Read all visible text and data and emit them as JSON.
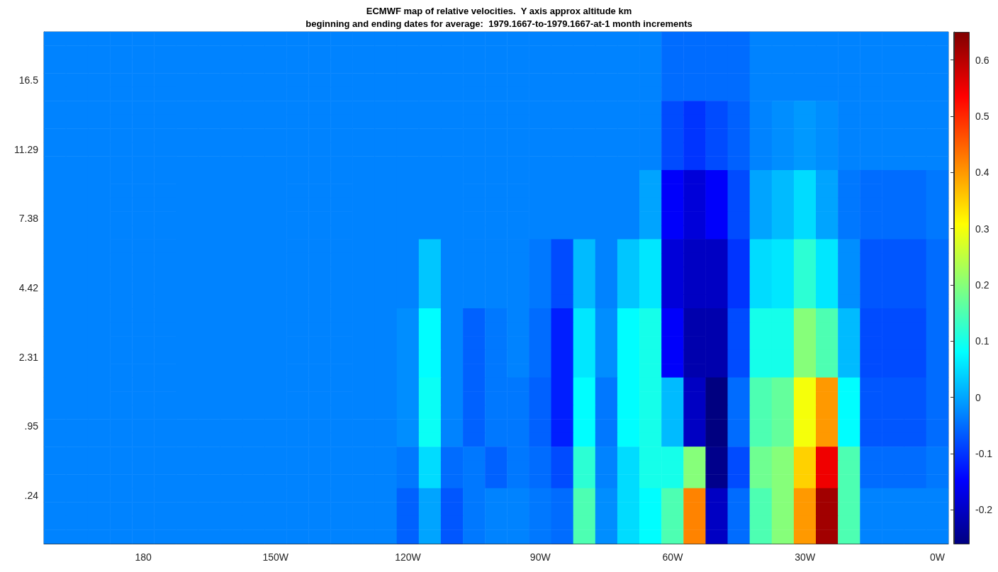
{
  "chart_data": {
    "type": "heatmap",
    "title": "ECMWF map of relative velocities.  Y axis approx altitude km",
    "subtitle": "beginning and ending dates for average:  1979.1667-to-1979.1667-at-1 month increments",
    "categories": [
      null,
      null,
      null,
      null,
      "180",
      null,
      null,
      null,
      null,
      null,
      "150W",
      null,
      null,
      null,
      null,
      null,
      "120W",
      null,
      null,
      null,
      null,
      null,
      "90W",
      null,
      null,
      null,
      null,
      null,
      "60W",
      null,
      null,
      null,
      null,
      null,
      "30W",
      null,
      null,
      null,
      null,
      null,
      "0W"
    ],
    "y_categories": [
      null,
      null,
      null,
      "16.5",
      null,
      null,
      null,
      null,
      "11.29",
      null,
      null,
      null,
      null,
      "7.38",
      null,
      null,
      null,
      null,
      "4.42",
      null,
      null,
      null,
      null,
      "2.31",
      null,
      null,
      null,
      null,
      ".95",
      null,
      null,
      null,
      null,
      ".24",
      null,
      null,
      null
    ],
    "clim": [
      -0.26,
      0.65
    ],
    "cticks": [
      -0.2,
      -0.1,
      0,
      0.1,
      0.2,
      0.3,
      0.4,
      0.5,
      0.6
    ],
    "cells": [
      [
        -0.03,
        -0.03,
        -0.03,
        -0.03,
        -0.03,
        -0.03,
        -0.03,
        -0.03,
        -0.03,
        -0.03,
        -0.03,
        -0.03,
        -0.03,
        -0.03,
        -0.03,
        -0.03,
        -0.03,
        -0.03,
        -0.03,
        -0.03,
        -0.03,
        -0.03,
        -0.03,
        -0.03,
        -0.03,
        -0.03,
        -0.03,
        -0.03,
        -0.05,
        -0.05,
        -0.05,
        -0.05,
        -0.03,
        -0.03,
        -0.03,
        -0.03,
        -0.03,
        -0.03,
        -0.03,
        -0.03,
        -0.03
      ],
      [
        -0.03,
        -0.03,
        -0.03,
        -0.03,
        -0.03,
        -0.03,
        -0.03,
        -0.03,
        -0.03,
        -0.03,
        -0.03,
        -0.03,
        -0.03,
        -0.03,
        -0.03,
        -0.03,
        -0.03,
        -0.03,
        -0.03,
        -0.03,
        -0.03,
        -0.03,
        -0.03,
        -0.03,
        -0.03,
        -0.03,
        -0.03,
        -0.03,
        -0.05,
        -0.05,
        -0.05,
        -0.05,
        -0.03,
        -0.03,
        -0.03,
        -0.03,
        -0.03,
        -0.03,
        -0.03,
        -0.03,
        -0.03
      ],
      [
        -0.03,
        -0.03,
        -0.03,
        -0.03,
        -0.03,
        -0.03,
        -0.03,
        -0.03,
        -0.03,
        -0.03,
        -0.03,
        -0.03,
        -0.03,
        -0.03,
        -0.03,
        -0.03,
        -0.03,
        -0.03,
        -0.03,
        -0.03,
        -0.03,
        -0.03,
        -0.03,
        -0.03,
        -0.03,
        -0.03,
        -0.03,
        -0.03,
        -0.05,
        -0.05,
        -0.05,
        -0.05,
        -0.03,
        -0.03,
        -0.03,
        -0.03,
        -0.03,
        -0.03,
        -0.03,
        -0.03,
        -0.03
      ],
      [
        -0.03,
        -0.03,
        -0.03,
        -0.03,
        -0.03,
        -0.03,
        -0.03,
        -0.03,
        -0.03,
        -0.03,
        -0.03,
        -0.03,
        -0.03,
        -0.03,
        -0.03,
        -0.03,
        -0.03,
        -0.03,
        -0.03,
        -0.03,
        -0.03,
        -0.03,
        -0.03,
        -0.03,
        -0.03,
        -0.03,
        -0.03,
        -0.03,
        -0.05,
        -0.05,
        -0.05,
        -0.05,
        -0.03,
        -0.03,
        -0.03,
        -0.03,
        -0.03,
        -0.03,
        -0.03,
        -0.03,
        -0.03
      ],
      [
        -0.03,
        -0.03,
        -0.03,
        -0.03,
        -0.03,
        -0.03,
        -0.03,
        -0.03,
        -0.03,
        -0.03,
        -0.03,
        -0.03,
        -0.03,
        -0.03,
        -0.03,
        -0.03,
        -0.03,
        -0.03,
        -0.03,
        -0.03,
        -0.03,
        -0.03,
        -0.03,
        -0.03,
        -0.03,
        -0.03,
        -0.03,
        -0.03,
        -0.05,
        -0.05,
        -0.05,
        -0.05,
        -0.03,
        -0.03,
        -0.03,
        -0.03,
        -0.03,
        -0.03,
        -0.03,
        -0.03,
        -0.03
      ],
      [
        -0.03,
        -0.03,
        -0.03,
        -0.03,
        -0.03,
        -0.03,
        -0.03,
        -0.03,
        -0.03,
        -0.03,
        -0.03,
        -0.03,
        -0.03,
        -0.03,
        -0.03,
        -0.03,
        -0.03,
        -0.03,
        -0.03,
        -0.03,
        -0.03,
        -0.03,
        -0.03,
        -0.03,
        -0.03,
        -0.03,
        -0.03,
        -0.03,
        -0.08,
        -0.1,
        -0.08,
        -0.06,
        -0.03,
        -0.02,
        -0.01,
        -0.02,
        -0.03,
        -0.03,
        -0.03,
        -0.03,
        -0.03
      ],
      [
        -0.03,
        -0.03,
        -0.03,
        -0.03,
        -0.03,
        -0.03,
        -0.03,
        -0.03,
        -0.03,
        -0.03,
        -0.03,
        -0.03,
        -0.03,
        -0.03,
        -0.03,
        -0.03,
        -0.03,
        -0.03,
        -0.03,
        -0.03,
        -0.03,
        -0.03,
        -0.03,
        -0.03,
        -0.03,
        -0.03,
        -0.03,
        -0.03,
        -0.08,
        -0.1,
        -0.08,
        -0.06,
        -0.03,
        -0.02,
        -0.01,
        -0.02,
        -0.03,
        -0.03,
        -0.03,
        -0.03,
        -0.03
      ],
      [
        -0.03,
        -0.03,
        -0.03,
        -0.03,
        -0.03,
        -0.03,
        -0.03,
        -0.03,
        -0.03,
        -0.03,
        -0.03,
        -0.03,
        -0.03,
        -0.03,
        -0.03,
        -0.03,
        -0.03,
        -0.03,
        -0.03,
        -0.03,
        -0.03,
        -0.03,
        -0.03,
        -0.03,
        -0.03,
        -0.03,
        -0.03,
        -0.03,
        -0.08,
        -0.1,
        -0.08,
        -0.06,
        -0.03,
        -0.02,
        -0.01,
        -0.02,
        -0.03,
        -0.03,
        -0.03,
        -0.03,
        -0.03
      ],
      [
        -0.03,
        -0.03,
        -0.03,
        -0.03,
        -0.03,
        -0.03,
        -0.03,
        -0.03,
        -0.03,
        -0.03,
        -0.03,
        -0.03,
        -0.03,
        -0.03,
        -0.03,
        -0.03,
        -0.03,
        -0.03,
        -0.03,
        -0.03,
        -0.03,
        -0.03,
        -0.03,
        -0.03,
        -0.03,
        -0.03,
        -0.03,
        -0.03,
        -0.08,
        -0.1,
        -0.08,
        -0.06,
        -0.03,
        -0.02,
        -0.01,
        -0.02,
        -0.03,
        -0.03,
        -0.03,
        -0.03,
        -0.03
      ],
      [
        -0.03,
        -0.03,
        -0.03,
        -0.03,
        -0.03,
        -0.03,
        -0.03,
        -0.03,
        -0.03,
        -0.03,
        -0.03,
        -0.03,
        -0.03,
        -0.03,
        -0.03,
        -0.03,
        -0.03,
        -0.03,
        -0.03,
        -0.03,
        -0.03,
        -0.03,
        -0.03,
        -0.03,
        -0.03,
        -0.03,
        -0.03,
        -0.03,
        -0.08,
        -0.1,
        -0.08,
        -0.06,
        -0.03,
        -0.02,
        -0.01,
        -0.02,
        -0.03,
        -0.03,
        -0.03,
        -0.03,
        -0.03
      ],
      [
        -0.03,
        -0.03,
        -0.03,
        -0.03,
        -0.03,
        -0.03,
        -0.03,
        -0.03,
        -0.03,
        -0.03,
        -0.03,
        -0.03,
        -0.03,
        -0.03,
        -0.03,
        -0.03,
        -0.03,
        -0.03,
        -0.03,
        -0.03,
        -0.03,
        -0.03,
        -0.03,
        -0.03,
        -0.03,
        -0.03,
        -0.03,
        0,
        -0.15,
        -0.18,
        -0.15,
        -0.08,
        0,
        0.02,
        0.05,
        0,
        -0.04,
        -0.05,
        -0.05,
        -0.05,
        -0.04
      ],
      [
        -0.03,
        -0.03,
        -0.03,
        -0.03,
        -0.03,
        -0.03,
        -0.03,
        -0.03,
        -0.03,
        -0.03,
        -0.03,
        -0.03,
        -0.03,
        -0.03,
        -0.03,
        -0.03,
        -0.03,
        -0.03,
        -0.03,
        -0.03,
        -0.03,
        -0.03,
        -0.03,
        -0.03,
        -0.03,
        -0.03,
        -0.03,
        0,
        -0.15,
        -0.18,
        -0.15,
        -0.08,
        0,
        0.02,
        0.05,
        0,
        -0.04,
        -0.05,
        -0.05,
        -0.05,
        -0.04
      ],
      [
        -0.03,
        -0.03,
        -0.03,
        -0.03,
        -0.03,
        -0.03,
        -0.03,
        -0.03,
        -0.03,
        -0.03,
        -0.03,
        -0.03,
        -0.03,
        -0.03,
        -0.03,
        -0.03,
        -0.03,
        -0.03,
        -0.03,
        -0.03,
        -0.03,
        -0.03,
        -0.03,
        -0.03,
        -0.03,
        -0.03,
        -0.03,
        0,
        -0.15,
        -0.18,
        -0.15,
        -0.08,
        0,
        0.02,
        0.05,
        0,
        -0.04,
        -0.05,
        -0.05,
        -0.05,
        -0.04
      ],
      [
        -0.03,
        -0.03,
        -0.03,
        -0.03,
        -0.03,
        -0.03,
        -0.03,
        -0.03,
        -0.03,
        -0.03,
        -0.03,
        -0.03,
        -0.03,
        -0.03,
        -0.03,
        -0.03,
        -0.03,
        -0.03,
        -0.03,
        -0.03,
        -0.03,
        -0.03,
        -0.03,
        -0.03,
        -0.03,
        -0.03,
        -0.03,
        0,
        -0.15,
        -0.18,
        -0.15,
        -0.08,
        0,
        0.02,
        0.05,
        0,
        -0.04,
        -0.05,
        -0.05,
        -0.05,
        -0.04
      ],
      [
        -0.03,
        -0.03,
        -0.03,
        -0.03,
        -0.03,
        -0.03,
        -0.03,
        -0.03,
        -0.03,
        -0.03,
        -0.03,
        -0.03,
        -0.03,
        -0.03,
        -0.03,
        -0.03,
        -0.03,
        -0.03,
        -0.03,
        -0.03,
        -0.03,
        -0.03,
        -0.03,
        -0.03,
        -0.03,
        -0.03,
        -0.03,
        0,
        -0.15,
        -0.18,
        -0.15,
        -0.08,
        0,
        0.02,
        0.05,
        0,
        -0.04,
        -0.05,
        -0.05,
        -0.05,
        -0.04
      ],
      [
        -0.03,
        -0.03,
        -0.03,
        -0.03,
        -0.03,
        -0.03,
        -0.03,
        -0.03,
        -0.03,
        -0.03,
        -0.03,
        -0.03,
        -0.03,
        -0.03,
        -0.03,
        -0.03,
        -0.03,
        0.03,
        -0.03,
        -0.03,
        -0.03,
        -0.03,
        -0.04,
        -0.08,
        0.02,
        -0.03,
        0.03,
        0.06,
        -0.18,
        -0.2,
        -0.2,
        -0.1,
        0.05,
        0.06,
        0.12,
        0.06,
        -0.02,
        -0.07,
        -0.07,
        -0.07,
        -0.05
      ],
      [
        -0.03,
        -0.03,
        -0.03,
        -0.03,
        -0.03,
        -0.03,
        -0.03,
        -0.03,
        -0.03,
        -0.03,
        -0.03,
        -0.03,
        -0.03,
        -0.03,
        -0.03,
        -0.03,
        -0.03,
        0.03,
        -0.03,
        -0.03,
        -0.03,
        -0.03,
        -0.04,
        -0.08,
        0.02,
        -0.03,
        0.03,
        0.06,
        -0.18,
        -0.2,
        -0.2,
        -0.1,
        0.05,
        0.06,
        0.12,
        0.06,
        -0.02,
        -0.07,
        -0.07,
        -0.07,
        -0.05
      ],
      [
        -0.03,
        -0.03,
        -0.03,
        -0.03,
        -0.03,
        -0.03,
        -0.03,
        -0.03,
        -0.03,
        -0.03,
        -0.03,
        -0.03,
        -0.03,
        -0.03,
        -0.03,
        -0.03,
        -0.03,
        0.03,
        -0.03,
        -0.03,
        -0.03,
        -0.03,
        -0.04,
        -0.08,
        0.02,
        -0.03,
        0.03,
        0.06,
        -0.18,
        -0.2,
        -0.2,
        -0.1,
        0.05,
        0.06,
        0.12,
        0.06,
        -0.02,
        -0.07,
        -0.07,
        -0.07,
        -0.05
      ],
      [
        -0.03,
        -0.03,
        -0.03,
        -0.03,
        -0.03,
        -0.03,
        -0.03,
        -0.03,
        -0.03,
        -0.03,
        -0.03,
        -0.03,
        -0.03,
        -0.03,
        -0.03,
        -0.03,
        -0.03,
        0.03,
        -0.03,
        -0.03,
        -0.03,
        -0.03,
        -0.04,
        -0.08,
        0.02,
        -0.03,
        0.03,
        0.06,
        -0.18,
        -0.2,
        -0.2,
        -0.1,
        0.05,
        0.06,
        0.12,
        0.06,
        -0.02,
        -0.07,
        -0.07,
        -0.07,
        -0.05
      ],
      [
        -0.03,
        -0.03,
        -0.03,
        -0.03,
        -0.03,
        -0.03,
        -0.03,
        -0.03,
        -0.03,
        -0.03,
        -0.03,
        -0.03,
        -0.03,
        -0.03,
        -0.03,
        -0.03,
        -0.03,
        0.03,
        -0.03,
        -0.03,
        -0.03,
        -0.03,
        -0.04,
        -0.08,
        0.02,
        -0.03,
        0.03,
        0.06,
        -0.18,
        -0.2,
        -0.2,
        -0.1,
        0.05,
        0.06,
        0.12,
        0.06,
        -0.02,
        -0.07,
        -0.07,
        -0.07,
        -0.05
      ],
      [
        -0.03,
        -0.03,
        -0.03,
        -0.03,
        -0.03,
        -0.03,
        -0.03,
        -0.03,
        -0.03,
        -0.03,
        -0.03,
        -0.03,
        -0.03,
        -0.03,
        -0.03,
        -0.03,
        -0.02,
        0.08,
        -0.03,
        -0.06,
        -0.04,
        -0.03,
        -0.05,
        -0.12,
        0.06,
        -0.02,
        0.08,
        0.1,
        -0.15,
        -0.22,
        -0.22,
        -0.08,
        0.1,
        0.1,
        0.2,
        0.15,
        0.02,
        -0.08,
        -0.08,
        -0.08,
        -0.05
      ],
      [
        -0.03,
        -0.03,
        -0.03,
        -0.03,
        -0.03,
        -0.03,
        -0.03,
        -0.03,
        -0.03,
        -0.03,
        -0.03,
        -0.03,
        -0.03,
        -0.03,
        -0.03,
        -0.03,
        -0.02,
        0.08,
        -0.03,
        -0.06,
        -0.04,
        -0.03,
        -0.05,
        -0.12,
        0.06,
        -0.02,
        0.08,
        0.1,
        -0.15,
        -0.22,
        -0.22,
        -0.08,
        0.1,
        0.1,
        0.2,
        0.15,
        0.02,
        -0.08,
        -0.08,
        -0.08,
        -0.05
      ],
      [
        -0.03,
        -0.03,
        -0.03,
        -0.03,
        -0.03,
        -0.03,
        -0.03,
        -0.03,
        -0.03,
        -0.03,
        -0.03,
        -0.03,
        -0.03,
        -0.03,
        -0.03,
        -0.03,
        -0.02,
        0.08,
        -0.03,
        -0.06,
        -0.04,
        -0.03,
        -0.05,
        -0.12,
        0.06,
        -0.02,
        0.08,
        0.1,
        -0.15,
        -0.22,
        -0.22,
        -0.08,
        0.1,
        0.1,
        0.2,
        0.15,
        0.02,
        -0.08,
        -0.08,
        -0.08,
        -0.05
      ],
      [
        -0.03,
        -0.03,
        -0.03,
        -0.03,
        -0.03,
        -0.03,
        -0.03,
        -0.03,
        -0.03,
        -0.03,
        -0.03,
        -0.03,
        -0.03,
        -0.03,
        -0.03,
        -0.03,
        -0.02,
        0.08,
        -0.03,
        -0.06,
        -0.04,
        -0.03,
        -0.05,
        -0.12,
        0.06,
        -0.02,
        0.08,
        0.1,
        -0.15,
        -0.22,
        -0.22,
        -0.08,
        0.1,
        0.1,
        0.2,
        0.15,
        0.02,
        -0.08,
        -0.08,
        -0.08,
        -0.05
      ],
      [
        -0.03,
        -0.03,
        -0.03,
        -0.03,
        -0.03,
        -0.03,
        -0.03,
        -0.03,
        -0.03,
        -0.03,
        -0.03,
        -0.03,
        -0.03,
        -0.03,
        -0.03,
        -0.03,
        -0.02,
        0.08,
        -0.03,
        -0.06,
        -0.04,
        -0.03,
        -0.05,
        -0.12,
        0.06,
        -0.02,
        0.08,
        0.1,
        -0.15,
        -0.22,
        -0.22,
        -0.08,
        0.1,
        0.1,
        0.2,
        0.15,
        0.02,
        -0.08,
        -0.08,
        -0.08,
        -0.05
      ],
      [
        -0.03,
        -0.03,
        -0.03,
        -0.03,
        -0.03,
        -0.03,
        -0.03,
        -0.03,
        -0.03,
        -0.03,
        -0.03,
        -0.03,
        -0.03,
        -0.03,
        -0.03,
        -0.03,
        -0.02,
        0.09,
        -0.03,
        -0.06,
        -0.04,
        -0.04,
        -0.06,
        -0.12,
        0.08,
        -0.04,
        0.08,
        0.1,
        0.02,
        -0.2,
        -0.26,
        -0.05,
        0.15,
        0.17,
        0.3,
        0.4,
        0.08,
        -0.07,
        -0.07,
        -0.07,
        -0.05
      ],
      [
        -0.03,
        -0.03,
        -0.03,
        -0.03,
        -0.03,
        -0.03,
        -0.03,
        -0.03,
        -0.03,
        -0.03,
        -0.03,
        -0.03,
        -0.03,
        -0.03,
        -0.03,
        -0.03,
        -0.02,
        0.09,
        -0.03,
        -0.06,
        -0.04,
        -0.04,
        -0.06,
        -0.12,
        0.08,
        -0.04,
        0.08,
        0.1,
        0.02,
        -0.2,
        -0.26,
        -0.05,
        0.15,
        0.17,
        0.3,
        0.4,
        0.08,
        -0.07,
        -0.07,
        -0.07,
        -0.05
      ],
      [
        -0.03,
        -0.03,
        -0.03,
        -0.03,
        -0.03,
        -0.03,
        -0.03,
        -0.03,
        -0.03,
        -0.03,
        -0.03,
        -0.03,
        -0.03,
        -0.03,
        -0.03,
        -0.03,
        -0.02,
        0.09,
        -0.03,
        -0.06,
        -0.04,
        -0.04,
        -0.06,
        -0.12,
        0.08,
        -0.04,
        0.08,
        0.1,
        0.02,
        -0.2,
        -0.26,
        -0.05,
        0.15,
        0.17,
        0.3,
        0.4,
        0.08,
        -0.07,
        -0.07,
        -0.07,
        -0.05
      ],
      [
        -0.03,
        -0.03,
        -0.03,
        -0.03,
        -0.03,
        -0.03,
        -0.03,
        -0.03,
        -0.03,
        -0.03,
        -0.03,
        -0.03,
        -0.03,
        -0.03,
        -0.03,
        -0.03,
        -0.02,
        0.09,
        -0.03,
        -0.06,
        -0.04,
        -0.04,
        -0.06,
        -0.12,
        0.08,
        -0.04,
        0.08,
        0.1,
        0.02,
        -0.2,
        -0.26,
        -0.05,
        0.15,
        0.17,
        0.3,
        0.4,
        0.08,
        -0.07,
        -0.07,
        -0.07,
        -0.05
      ],
      [
        -0.03,
        -0.03,
        -0.03,
        -0.03,
        -0.03,
        -0.03,
        -0.03,
        -0.03,
        -0.03,
        -0.03,
        -0.03,
        -0.03,
        -0.03,
        -0.03,
        -0.03,
        -0.03,
        -0.02,
        0.09,
        -0.03,
        -0.06,
        -0.04,
        -0.04,
        -0.06,
        -0.12,
        0.08,
        -0.04,
        0.08,
        0.1,
        0.02,
        -0.2,
        -0.26,
        -0.05,
        0.15,
        0.17,
        0.3,
        0.4,
        0.08,
        -0.07,
        -0.07,
        -0.07,
        -0.05
      ],
      [
        -0.03,
        -0.03,
        -0.03,
        -0.03,
        -0.03,
        -0.03,
        -0.03,
        -0.03,
        -0.03,
        -0.03,
        -0.03,
        -0.03,
        -0.03,
        -0.03,
        -0.03,
        -0.03,
        -0.04,
        0.05,
        -0.05,
        -0.04,
        -0.06,
        -0.04,
        -0.05,
        -0.08,
        0.12,
        -0.03,
        0.05,
        0.1,
        0.1,
        0.2,
        -0.25,
        -0.08,
        0.18,
        0.2,
        0.35,
        0.55,
        0.15,
        -0.05,
        -0.05,
        -0.05,
        -0.04
      ],
      [
        -0.03,
        -0.03,
        -0.03,
        -0.03,
        -0.03,
        -0.03,
        -0.03,
        -0.03,
        -0.03,
        -0.03,
        -0.03,
        -0.03,
        -0.03,
        -0.03,
        -0.03,
        -0.03,
        -0.04,
        0.05,
        -0.05,
        -0.04,
        -0.06,
        -0.04,
        -0.05,
        -0.08,
        0.12,
        -0.03,
        0.05,
        0.1,
        0.1,
        0.2,
        -0.25,
        -0.08,
        0.18,
        0.2,
        0.35,
        0.55,
        0.15,
        -0.05,
        -0.05,
        -0.05,
        -0.04
      ],
      [
        -0.03,
        -0.03,
        -0.03,
        -0.03,
        -0.03,
        -0.03,
        -0.03,
        -0.03,
        -0.03,
        -0.03,
        -0.03,
        -0.03,
        -0.03,
        -0.03,
        -0.03,
        -0.03,
        -0.04,
        0.05,
        -0.05,
        -0.04,
        -0.06,
        -0.04,
        -0.05,
        -0.08,
        0.12,
        -0.03,
        0.05,
        0.1,
        0.1,
        0.2,
        -0.25,
        -0.08,
        0.18,
        0.2,
        0.35,
        0.55,
        0.15,
        -0.05,
        -0.05,
        -0.05,
        -0.04
      ],
      [
        -0.03,
        -0.03,
        -0.03,
        -0.03,
        -0.03,
        -0.03,
        -0.03,
        -0.03,
        -0.03,
        -0.03,
        -0.03,
        -0.03,
        -0.03,
        -0.03,
        -0.03,
        -0.03,
        -0.06,
        0,
        -0.07,
        -0.04,
        -0.03,
        -0.03,
        -0.04,
        -0.05,
        0.15,
        -0.02,
        0.05,
        0.08,
        0.15,
        0.42,
        -0.2,
        -0.05,
        0.15,
        0.2,
        0.4,
        0.62,
        0.15,
        -0.03,
        -0.03,
        -0.03,
        -0.03
      ],
      [
        -0.03,
        -0.03,
        -0.03,
        -0.03,
        -0.03,
        -0.03,
        -0.03,
        -0.03,
        -0.03,
        -0.03,
        -0.03,
        -0.03,
        -0.03,
        -0.03,
        -0.03,
        -0.03,
        -0.06,
        0,
        -0.07,
        -0.04,
        -0.03,
        -0.03,
        -0.04,
        -0.05,
        0.15,
        -0.02,
        0.05,
        0.08,
        0.15,
        0.42,
        -0.2,
        -0.05,
        0.15,
        0.2,
        0.4,
        0.62,
        0.15,
        -0.03,
        -0.03,
        -0.03,
        -0.03
      ],
      [
        -0.03,
        -0.03,
        -0.03,
        -0.03,
        -0.03,
        -0.03,
        -0.03,
        -0.03,
        -0.03,
        -0.03,
        -0.03,
        -0.03,
        -0.03,
        -0.03,
        -0.03,
        -0.03,
        -0.06,
        0,
        -0.07,
        -0.04,
        -0.03,
        -0.03,
        -0.04,
        -0.05,
        0.15,
        -0.02,
        0.05,
        0.08,
        0.15,
        0.42,
        -0.2,
        -0.05,
        0.15,
        0.2,
        0.4,
        0.62,
        0.15,
        -0.03,
        -0.03,
        -0.03,
        -0.03
      ],
      [
        -0.03,
        -0.03,
        -0.03,
        -0.03,
        -0.03,
        -0.03,
        -0.03,
        -0.03,
        -0.03,
        -0.03,
        -0.03,
        -0.03,
        -0.03,
        -0.03,
        -0.03,
        -0.03,
        -0.06,
        0,
        -0.07,
        -0.04,
        -0.03,
        -0.03,
        -0.04,
        -0.05,
        0.15,
        -0.02,
        0.05,
        0.08,
        0.15,
        0.42,
        -0.2,
        -0.05,
        0.15,
        0.2,
        0.4,
        0.62,
        0.15,
        -0.03,
        -0.03,
        -0.03,
        -0.03
      ]
    ]
  }
}
